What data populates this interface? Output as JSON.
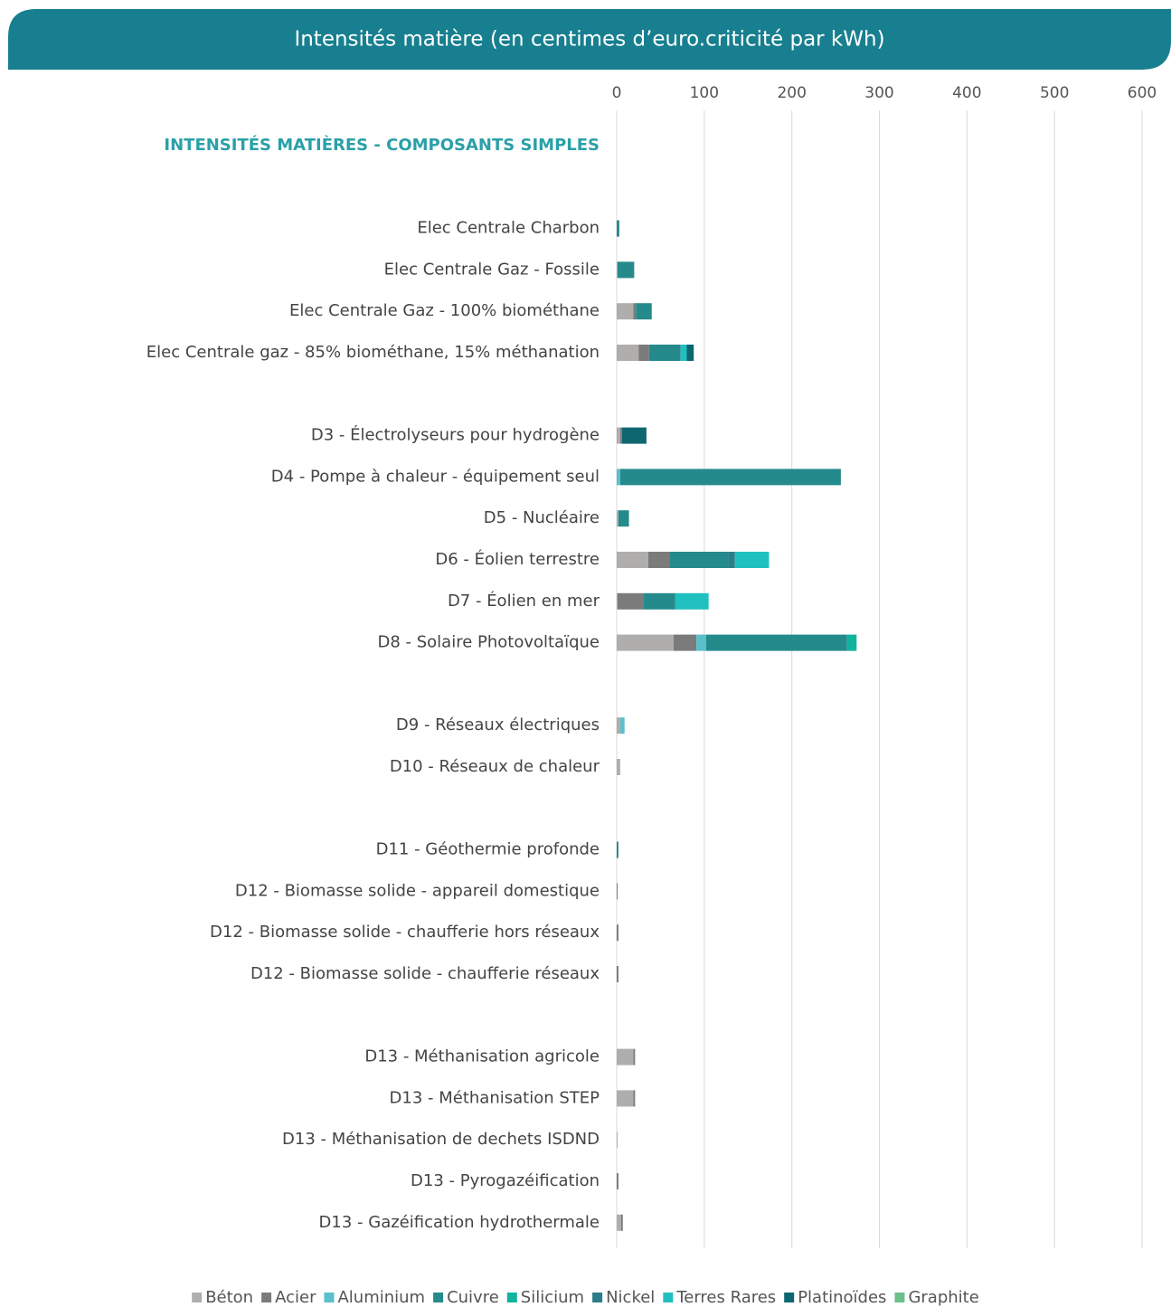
{
  "chart_data": {
    "type": "stacked_barh",
    "title": "Intensités matière (en centimes d’euro.criticité par kWh)",
    "section_label": "INTENSITÉS MATIÈRES - COMPOSANTS SIMPLES",
    "categories": [
      null,
      "Elec Centrale Charbon",
      "Elec Centrale Gaz - Fossile",
      "Elec Centrale Gaz - 100% biométhane",
      "Elec Centrale gaz - 85% biométhane, 15% méthanation",
      null,
      "D3 - Électrolyseurs pour hydrogène",
      "D4 - Pompe à chaleur - équipement seul",
      "D5 - Nucléaire",
      "D6 - Éolien terrestre",
      "D7 - Éolien en mer",
      "D8 - Solaire Photovoltaïque",
      null,
      "D9 - Réseaux électriques",
      "D10 - Réseaux de chaleur",
      null,
      "D11 - Géothermie profonde",
      "D12 - Biomasse solide - appareil domestique",
      "D12 - Biomasse solide - chaufferie hors réseaux",
      "D12 - Biomasse solide - chaufferie réseaux",
      null,
      "D13 - Méthanisation agricole",
      "D13 - Méthanisation STEP",
      "D13 - Méthanisation de dechets ISDND",
      "D13 - Pyrogazéification",
      "D13 - Gazéification hydrothermale"
    ],
    "series": [
      {
        "name": "Béton",
        "color": "#b0adad",
        "values": [
          null,
          0,
          1,
          19,
          25,
          null,
          4,
          0,
          2,
          36,
          1,
          65,
          null,
          4,
          4,
          null,
          0,
          0,
          0,
          0,
          null,
          19,
          19,
          1,
          0,
          5
        ]
      },
      {
        "name": "Acier",
        "color": "#7b7b7b",
        "values": [
          null,
          0,
          0,
          3,
          12,
          null,
          2,
          0,
          0,
          24,
          30,
          26,
          null,
          0,
          0,
          null,
          0,
          1,
          2,
          2,
          null,
          2,
          2,
          0,
          2,
          2
        ]
      },
      {
        "name": "Aluminium",
        "color": "#5bbfcc",
        "values": [
          null,
          0,
          0,
          0,
          0,
          null,
          0,
          4,
          0,
          0,
          0,
          11,
          null,
          5,
          0,
          null,
          0,
          0,
          0,
          0,
          null,
          0,
          0,
          0,
          0,
          0
        ]
      },
      {
        "name": "Cuivre",
        "color": "#258a8c",
        "values": [
          null,
          3,
          19,
          18,
          36,
          null,
          0,
          252,
          12,
          68,
          36,
          161,
          null,
          0,
          0,
          null,
          2,
          0,
          0,
          0,
          null,
          0,
          0,
          0,
          0,
          0
        ]
      },
      {
        "name": "Silicium",
        "color": "#10b49e",
        "values": [
          null,
          0,
          0,
          0,
          0,
          null,
          0,
          0,
          0,
          0,
          0,
          11,
          null,
          0,
          0,
          null,
          0,
          0,
          0,
          0,
          null,
          0,
          0,
          0,
          0,
          0
        ]
      },
      {
        "name": "Nickel",
        "color": "#2d7d8a",
        "values": [
          null,
          0,
          0,
          0,
          0,
          null,
          0,
          0,
          0,
          7,
          0,
          0,
          null,
          0,
          0,
          null,
          0,
          0,
          0,
          0,
          null,
          0,
          0,
          0,
          0,
          0
        ]
      },
      {
        "name": "Terres Rares",
        "color": "#20c0c0",
        "values": [
          null,
          0,
          0,
          0,
          7,
          null,
          0,
          0,
          0,
          39,
          38,
          0,
          null,
          0,
          0,
          null,
          0,
          0,
          0,
          0,
          null,
          0,
          0,
          0,
          0,
          0
        ]
      },
      {
        "name": "Platinoïdes",
        "color": "#0e6670",
        "values": [
          null,
          0,
          0,
          0,
          8,
          null,
          28,
          0,
          0,
          0,
          0,
          0,
          null,
          0,
          0,
          null,
          0,
          0,
          0,
          0,
          null,
          0,
          0,
          0,
          0,
          0
        ]
      },
      {
        "name": "Graphite",
        "color": "#6cc08b",
        "values": [
          null,
          0,
          0,
          0,
          0,
          null,
          0,
          0,
          0,
          0,
          0,
          0,
          null,
          0,
          0,
          null,
          0,
          0,
          0,
          0,
          null,
          0,
          0,
          0,
          0,
          0
        ]
      }
    ],
    "xlim": [
      0,
      600
    ],
    "xticks": [
      0,
      100,
      200,
      300,
      400,
      500,
      600
    ],
    "grid": true,
    "legend": "bottom"
  }
}
